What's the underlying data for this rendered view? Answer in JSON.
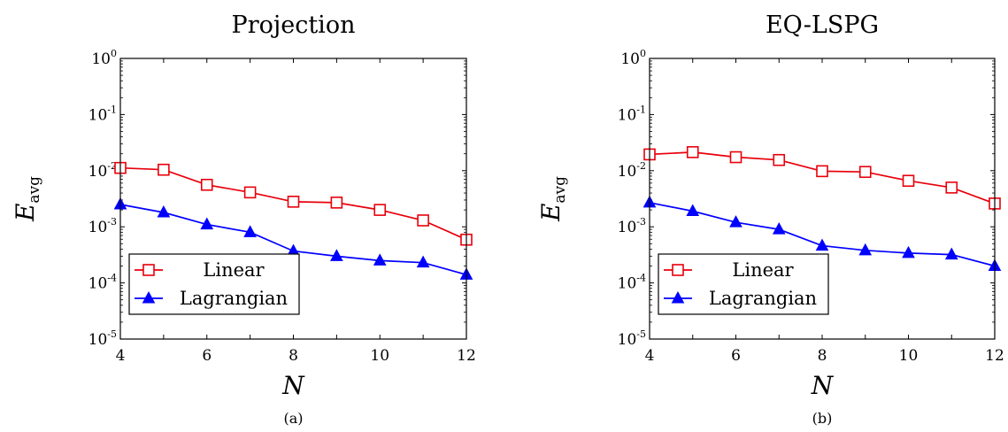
{
  "chart_data": [
    {
      "type": "line",
      "title": "Projection",
      "xlabel": "N",
      "ylabel_main": "E",
      "ylabel_sub": "avg",
      "caption": "(a)",
      "xlim": [
        4,
        12
      ],
      "ylim": [
        1e-05,
        1
      ],
      "yscale": "log",
      "xticks": [
        4,
        6,
        8,
        10,
        12
      ],
      "yticks": [
        {
          "base": "10",
          "exp": "-5",
          "value": -5
        },
        {
          "base": "10",
          "exp": "-4",
          "value": -4
        },
        {
          "base": "10",
          "exp": "-3",
          "value": -3
        },
        {
          "base": "10",
          "exp": "-2",
          "value": -2
        },
        {
          "base": "10",
          "exp": "-1",
          "value": -1
        },
        {
          "base": "10",
          "exp": "0",
          "value": 0
        }
      ],
      "legend_position": "bottom-left",
      "x": [
        4,
        5,
        6,
        7,
        8,
        9,
        10,
        11,
        12
      ],
      "series": [
        {
          "name": "Linear",
          "color": "#e8000b",
          "marker": "square-open",
          "values": [
            0.0112,
            0.0104,
            0.0056,
            0.0041,
            0.0028,
            0.0027,
            0.002,
            0.0013,
            0.00059
          ]
        },
        {
          "name": "Lagrangian",
          "color": "#0000ff",
          "marker": "triangle-filled",
          "values": [
            0.0025,
            0.0018,
            0.0011,
            0.0008,
            0.00037,
            0.0003,
            0.00025,
            0.00023,
            0.00014
          ]
        }
      ]
    },
    {
      "type": "line",
      "title": "EQ-LSPG",
      "xlabel": "N",
      "ylabel_main": "E",
      "ylabel_sub": "avg",
      "caption": "(b)",
      "xlim": [
        4,
        12
      ],
      "ylim": [
        1e-05,
        1
      ],
      "yscale": "log",
      "xticks": [
        4,
        6,
        8,
        10,
        12
      ],
      "yticks": [
        {
          "base": "10",
          "exp": "-5",
          "value": -5
        },
        {
          "base": "10",
          "exp": "-4",
          "value": -4
        },
        {
          "base": "10",
          "exp": "-3",
          "value": -3
        },
        {
          "base": "10",
          "exp": "-2",
          "value": -2
        },
        {
          "base": "10",
          "exp": "-1",
          "value": -1
        },
        {
          "base": "10",
          "exp": "0",
          "value": 0
        }
      ],
      "legend_position": "bottom-left",
      "x": [
        4,
        5,
        6,
        7,
        8,
        9,
        10,
        11,
        12
      ],
      "series": [
        {
          "name": "Linear",
          "color": "#e8000b",
          "marker": "square-open",
          "values": [
            0.0195,
            0.0214,
            0.0174,
            0.0155,
            0.0098,
            0.0095,
            0.0066,
            0.005,
            0.0026
          ]
        },
        {
          "name": "Lagrangian",
          "color": "#0000ff",
          "marker": "triangle-filled",
          "values": [
            0.0027,
            0.0019,
            0.0012,
            0.0009,
            0.00046,
            0.00038,
            0.00034,
            0.00032,
            0.0002
          ]
        }
      ]
    }
  ]
}
